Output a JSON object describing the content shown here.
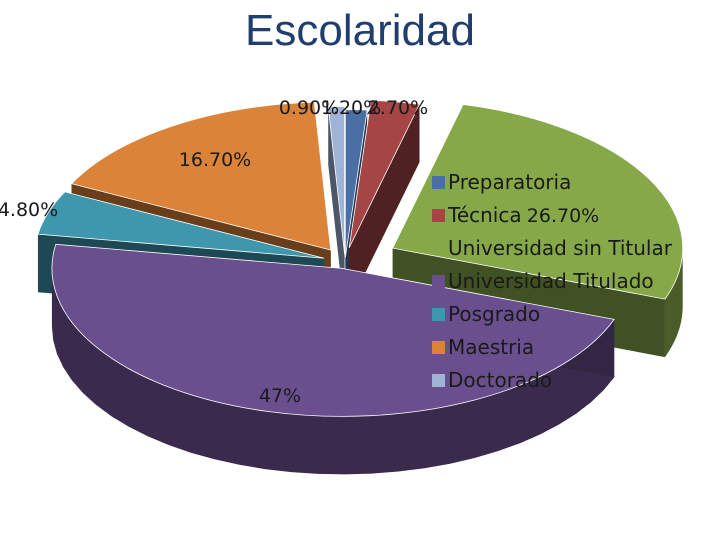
{
  "chart_data": {
    "type": "pie",
    "title": "Escolaridad",
    "slices": [
      {
        "category": "Preparatoria",
        "value": 1.2,
        "label": "1.20%",
        "color": "#4a6fa5"
      },
      {
        "category": "Técnica",
        "value": 2.7,
        "label": "2.70%",
        "color": "#a64545"
      },
      {
        "category": "Universidad sin Titular",
        "value": 26.7,
        "label": "26.70%",
        "color": "#86a848"
      },
      {
        "category": "Universidad Titulado",
        "value": 47,
        "label": "47%",
        "color": "#6a4f8e"
      },
      {
        "category": "Posgrado",
        "value": 4.8,
        "label": "4.80%",
        "color": "#3e97ad"
      },
      {
        "category": "Maestria",
        "value": 16.7,
        "label": "16.70%",
        "color": "#da8339"
      },
      {
        "category": "Doctorado",
        "value": 0.9,
        "label": "0.90%",
        "color": "#9eb4d6"
      }
    ],
    "legend": {
      "position": "right"
    }
  }
}
